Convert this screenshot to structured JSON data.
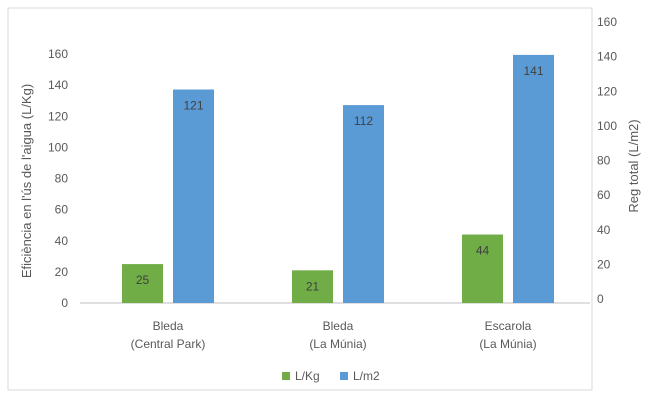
{
  "chart_data": {
    "type": "bar",
    "categories": [
      [
        "Bleda",
        "(Central Park)"
      ],
      [
        "Bleda",
        "(La Múnia)"
      ],
      [
        "Escarola",
        "(La Múnia)"
      ]
    ],
    "series": [
      {
        "name": "L/Kg",
        "values": [
          25,
          21,
          44
        ],
        "color": "#70ad47",
        "axis": "left"
      },
      {
        "name": "L/m2",
        "values": [
          121,
          112,
          141
        ],
        "color": "#5b9bd5",
        "axis": "right"
      }
    ],
    "ylabel": "Eficiència en l'ús de l'aigua (L/Kg)",
    "y2label": "Reg total (L/m2)",
    "ylim": [
      0,
      160
    ],
    "y2lim": [
      0,
      160
    ],
    "yticks": [
      0,
      20,
      40,
      60,
      80,
      100,
      120,
      140,
      160
    ],
    "y2ticks": [
      0,
      20,
      40,
      60,
      80,
      100,
      120,
      140,
      160
    ],
    "grid": false,
    "legend": "bottom"
  }
}
